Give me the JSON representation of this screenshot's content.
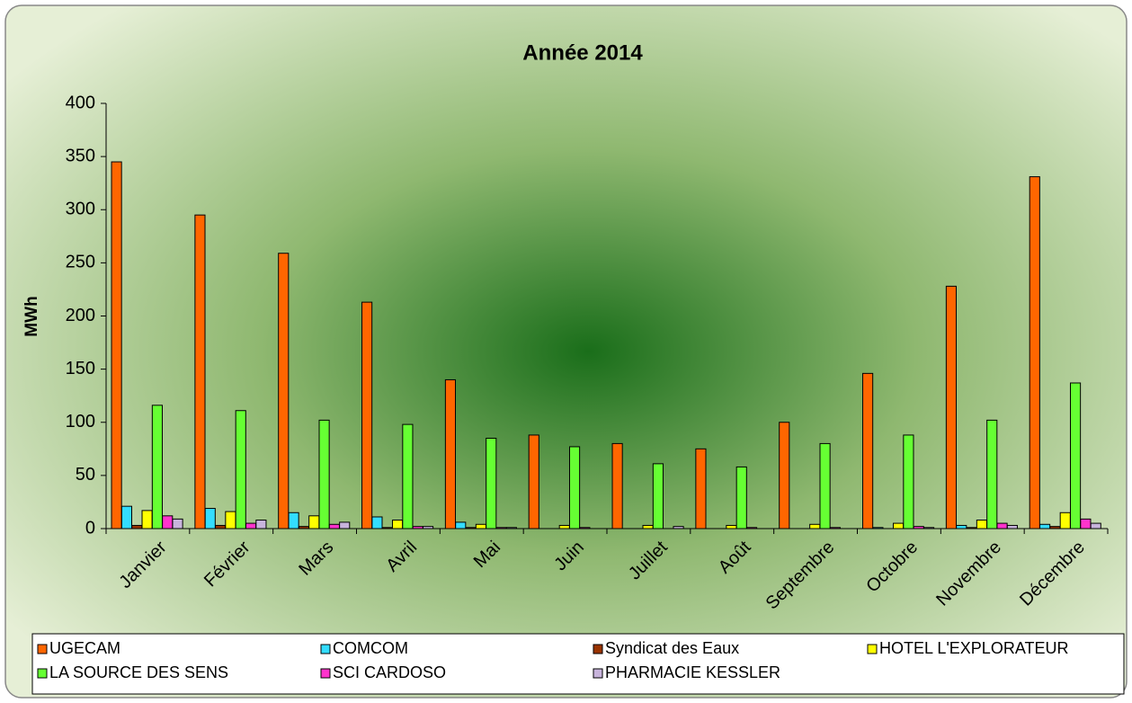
{
  "chart_data": {
    "type": "bar",
    "title": "Année 2014",
    "y_label": "MWh",
    "categories": [
      "Janvier",
      "Février",
      "Mars",
      "Avril",
      "Mai",
      "Juin",
      "Juillet",
      "Août",
      "Septembre",
      "Octobre",
      "Novembre",
      "Décembre"
    ],
    "series": [
      {
        "name": "UGECAM",
        "color": "#ff6600",
        "values": [
          345,
          295,
          259,
          213,
          140,
          88,
          80,
          75,
          100,
          146,
          228,
          331
        ]
      },
      {
        "name": "COMCOM",
        "color": "#33ddff",
        "values": [
          21,
          19,
          15,
          11,
          6,
          0,
          0,
          0,
          0,
          1,
          3,
          4
        ]
      },
      {
        "name": "Syndicat des Eaux",
        "color": "#993300",
        "values": [
          3,
          3,
          2,
          1,
          1,
          0,
          0,
          0,
          0,
          0,
          1,
          2
        ]
      },
      {
        "name": "HOTEL L'EXPLORATEUR",
        "color": "#ffff00",
        "values": [
          17,
          16,
          12,
          8,
          4,
          3,
          3,
          3,
          4,
          5,
          8,
          15
        ]
      },
      {
        "name": "LA SOURCE DES SENS",
        "color": "#66ff33",
        "values": [
          116,
          111,
          102,
          98,
          85,
          77,
          61,
          58,
          80,
          88,
          102,
          137
        ]
      },
      {
        "name": "SCI CARDOSO",
        "color": "#ff33cc",
        "values": [
          12,
          5,
          4,
          2,
          1,
          1,
          0,
          1,
          1,
          2,
          5,
          9
        ]
      },
      {
        "name": "PHARMACIE KESSLER",
        "color": "#c8b4dc",
        "values": [
          9,
          8,
          6,
          2,
          1,
          0,
          2,
          0,
          0,
          1,
          3,
          5
        ]
      }
    ],
    "ylim": [
      0,
      400
    ],
    "yticks": [
      0,
      50,
      100,
      150,
      200,
      250,
      300,
      350,
      400
    ],
    "grid": false,
    "legend": "bottom"
  }
}
